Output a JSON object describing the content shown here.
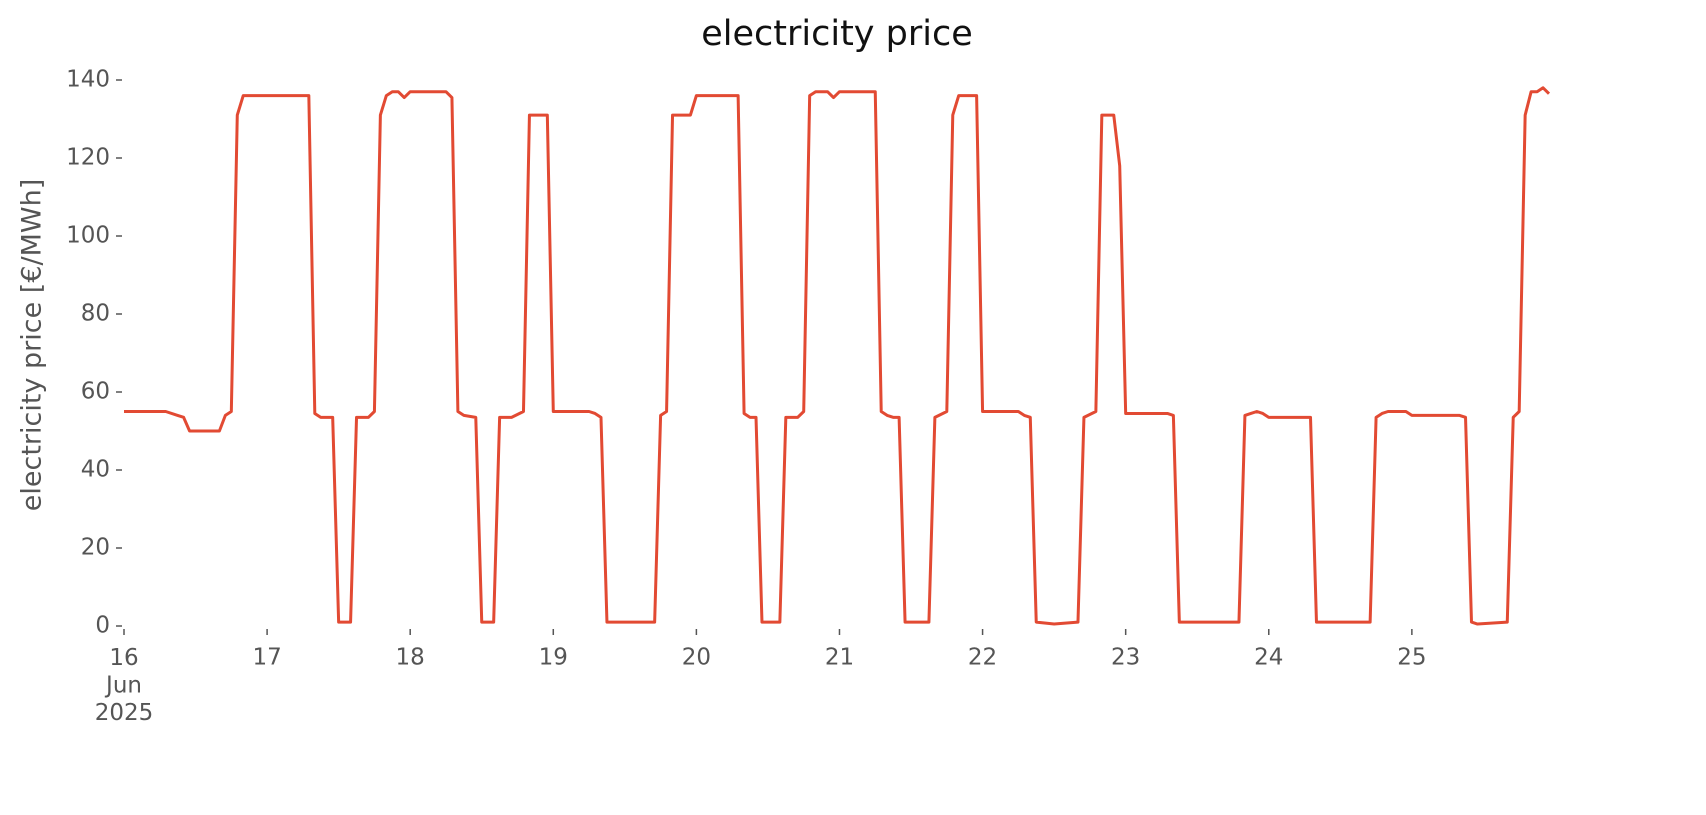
{
  "chart_data": {
    "type": "line",
    "title": "electricity price",
    "y_label": "electricity price [€/MWh]",
    "x": [
      0,
      7,
      9,
      10,
      11,
      16,
      17,
      18,
      19,
      20,
      31,
      32,
      33,
      35,
      36,
      38,
      39,
      41,
      42,
      43,
      44,
      45,
      46,
      47,
      48,
      54,
      55,
      56,
      57,
      59,
      60,
      62,
      63,
      65,
      67,
      68,
      71,
      72,
      78,
      79,
      80,
      81,
      89,
      90,
      91,
      92,
      95,
      96,
      103,
      104,
      105,
      106,
      107,
      110,
      111,
      113,
      114,
      115,
      116,
      118,
      119,
      120,
      126,
      127,
      128,
      129,
      130,
      131,
      135,
      136,
      138,
      139,
      140,
      143,
      144,
      150,
      151,
      152,
      153,
      156,
      160,
      161,
      163,
      164,
      166,
      167,
      168,
      175,
      176,
      177,
      187,
      188,
      189,
      190,
      191,
      192,
      199,
      200,
      209,
      210,
      211,
      212,
      215,
      216,
      224,
      225,
      226,
      227,
      232,
      233,
      234,
      235,
      236,
      237,
      238,
      239
    ],
    "series": [
      {
        "name": "electricity price",
        "color": "#e24a33",
        "values": [
          55,
          55,
          54,
          53.5,
          50,
          50,
          54,
          55,
          131,
          136,
          136,
          54.5,
          53.5,
          53.5,
          1,
          1,
          53.5,
          53.5,
          55,
          131,
          136,
          137,
          137,
          135.5,
          137,
          137,
          135.5,
          55,
          54,
          53.5,
          1,
          1,
          53.5,
          53.5,
          55,
          131,
          131,
          55,
          55,
          54.5,
          53.5,
          1,
          1,
          54,
          55,
          131,
          131,
          136,
          136,
          54.5,
          53.5,
          53.5,
          1,
          1,
          53.5,
          53.5,
          55,
          136,
          137,
          137,
          135.5,
          137,
          137,
          55,
          54,
          53.5,
          53.5,
          1,
          1,
          53.5,
          55,
          131,
          136,
          136,
          55,
          55,
          54,
          53.5,
          1,
          0.5,
          1,
          53.5,
          55,
          131,
          131,
          118,
          54.5,
          54.5,
          54,
          1,
          1,
          54,
          54.5,
          55,
          54.5,
          53.5,
          53.5,
          1,
          1,
          53.5,
          54.5,
          55,
          55,
          54,
          54,
          53.5,
          1,
          0.5,
          1,
          53.5,
          55,
          131,
          137,
          137,
          138,
          136.5
        ]
      }
    ],
    "xlim": [
      0,
      239
    ],
    "xticks": [
      {
        "value": 0,
        "label": "16\nJun\n2025"
      },
      {
        "value": 24,
        "label": "17"
      },
      {
        "value": 48,
        "label": "18"
      },
      {
        "value": 72,
        "label": "19"
      },
      {
        "value": 96,
        "label": "20"
      },
      {
        "value": 120,
        "label": "21"
      },
      {
        "value": 144,
        "label": "22"
      },
      {
        "value": 168,
        "label": "23"
      },
      {
        "value": 192,
        "label": "24"
      },
      {
        "value": 216,
        "label": "25"
      }
    ],
    "ylim": [
      0,
      140
    ],
    "yticks": [
      0,
      20,
      40,
      60,
      80,
      100,
      120,
      140
    ],
    "grid": false
  }
}
